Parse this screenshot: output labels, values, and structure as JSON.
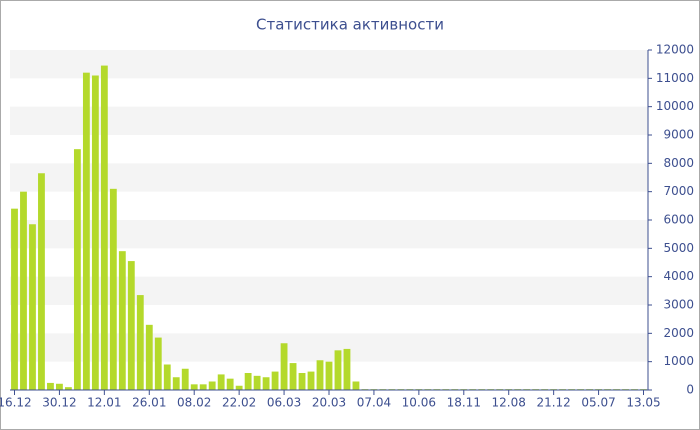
{
  "chart_data": {
    "type": "bar",
    "title": "Статистика активности",
    "categories": [
      "16.12",
      null,
      null,
      null,
      null,
      "30.12",
      null,
      null,
      null,
      null,
      "12.01",
      null,
      null,
      null,
      null,
      "26.01",
      null,
      null,
      null,
      null,
      "08.02",
      null,
      null,
      null,
      null,
      "22.02",
      null,
      null,
      null,
      null,
      "06.03",
      null,
      null,
      null,
      null,
      "20.03",
      null,
      null,
      null,
      null,
      "07.04",
      null,
      null,
      null,
      null,
      "10.06",
      null,
      null,
      null,
      null,
      "18.11",
      null,
      null,
      null,
      null,
      "12.08",
      null,
      null,
      null,
      null,
      "21.12",
      null,
      null,
      null,
      null,
      "05.07",
      null,
      null,
      null,
      null,
      "13.05"
    ],
    "values": [
      6400,
      7000,
      5850,
      7650,
      250,
      220,
      100,
      8500,
      11200,
      11100,
      11450,
      7100,
      4900,
      4550,
      3350,
      2300,
      1850,
      900,
      450,
      750,
      200,
      200,
      300,
      550,
      400,
      150,
      600,
      500,
      450,
      650,
      1650,
      950,
      600,
      650,
      1050,
      1000,
      1400,
      1450,
      300,
      30,
      30,
      30,
      30,
      30,
      30,
      30,
      30,
      30,
      30,
      30,
      30,
      30,
      30,
      30,
      30,
      30,
      30,
      30,
      30,
      30,
      30,
      30,
      30,
      30,
      30,
      30,
      30,
      30,
      30,
      30,
      30
    ],
    "color": "#b4d92b",
    "ylim": [
      0,
      12000
    ],
    "yticks": [
      0,
      1000,
      2000,
      3000,
      4000,
      5000,
      6000,
      7000,
      8000,
      9000,
      10000,
      11000,
      12000
    ],
    "axis_side": "right",
    "bands": true
  }
}
